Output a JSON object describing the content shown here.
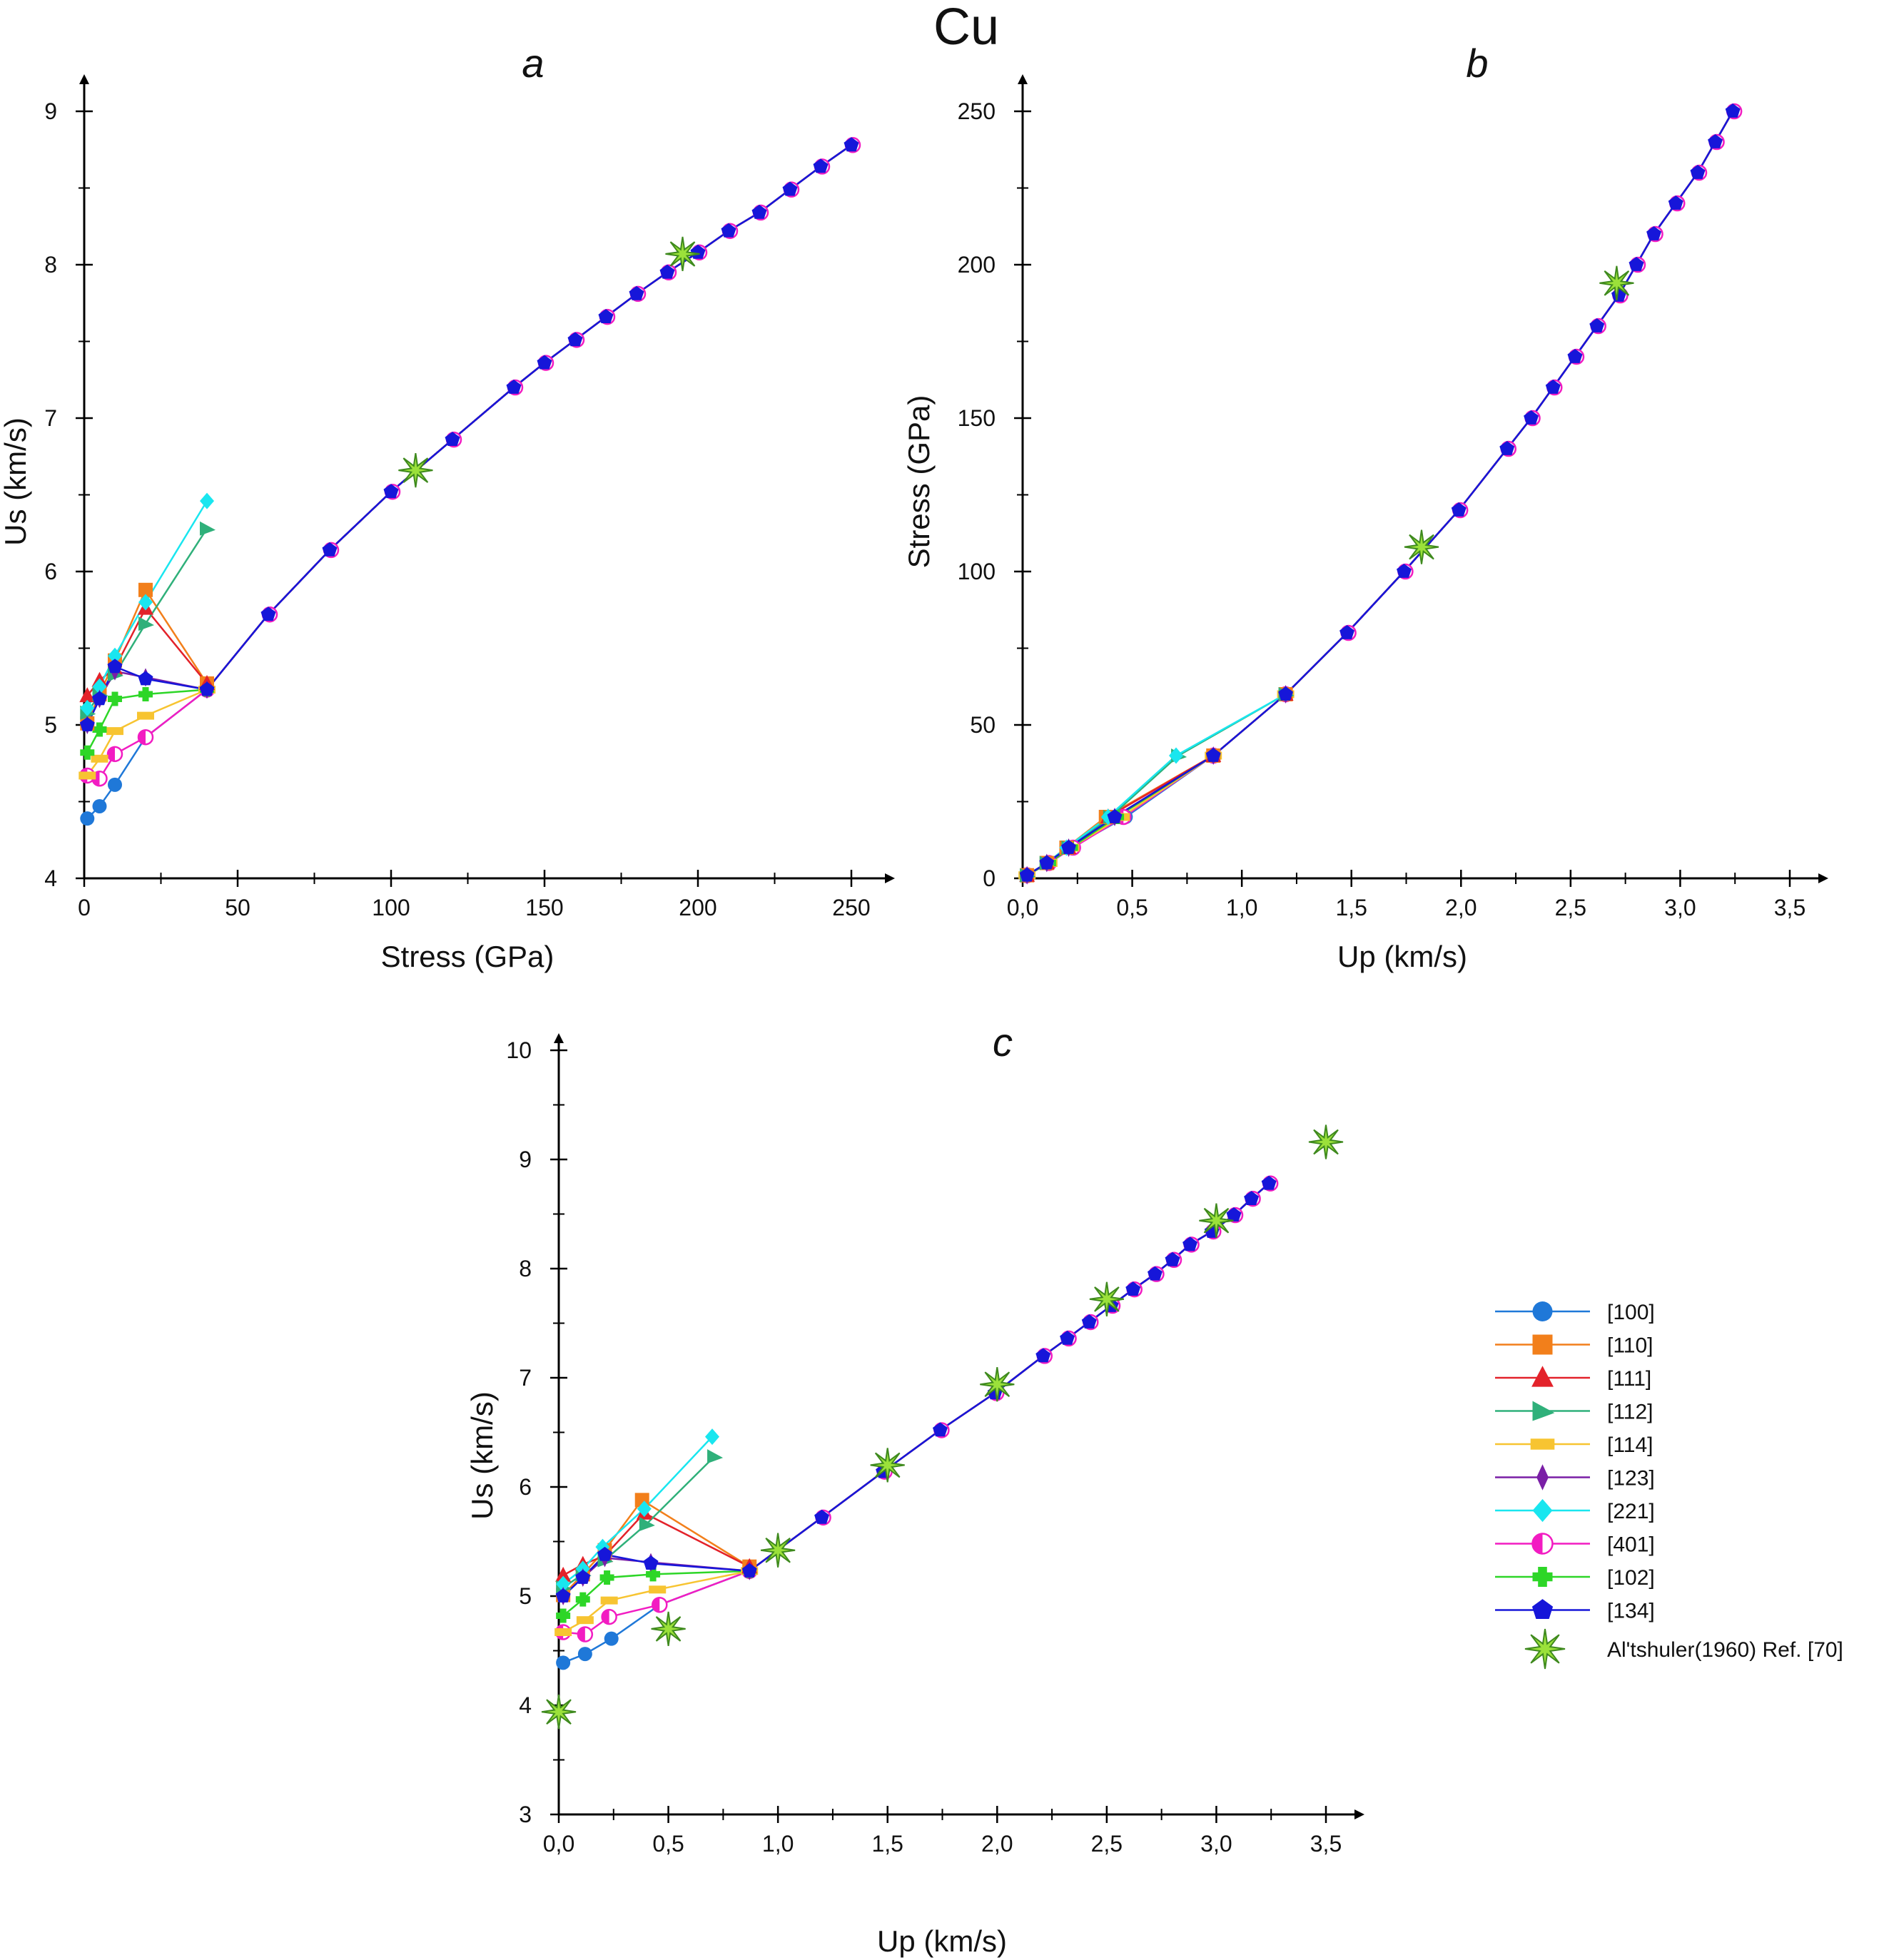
{
  "title": "Cu",
  "colors": {
    "[100]": "#1f78d8",
    "[110]": "#f27f1b",
    "[111]": "#e3222a",
    "[112]": "#2fb07a",
    "[114]": "#f7c431",
    "[123]": "#7a1fa6",
    "[221]": "#19e6ef",
    "[401]": "#f21cc2",
    "[102]": "#2dd627",
    "[134]": "#1616d9",
    "altshuler": "#9be13a",
    "altshuler_edge": "#3f8a1e",
    "axis": "#000000"
  },
  "legend": {
    "items": [
      {
        "label": "[100]",
        "marker": "circle"
      },
      {
        "label": "[110]",
        "marker": "square"
      },
      {
        "label": "[111]",
        "marker": "triangle-up"
      },
      {
        "label": "[112]",
        "marker": "triangle-right"
      },
      {
        "label": "[114]",
        "marker": "bar"
      },
      {
        "label": "[123]",
        "marker": "thin-diamond"
      },
      {
        "label": "[221]",
        "marker": "diamond"
      },
      {
        "label": "[401]",
        "marker": "half-circle"
      },
      {
        "label": "[102]",
        "marker": "plus"
      },
      {
        "label": "[134]",
        "marker": "pentagon"
      }
    ],
    "reference_label": "Al'tshuler(1960) Ref. [70]"
  },
  "chart_data": [
    {
      "id": "a",
      "panel_label": "a",
      "type": "line",
      "xlabel": "Stress (GPa)",
      "ylabel": "Us (km/s)",
      "xlim": [
        0,
        250
      ],
      "ylim": [
        4,
        9
      ],
      "xticks": [
        0,
        50,
        100,
        150,
        200,
        250
      ],
      "yticks": [
        4,
        5,
        6,
        7,
        8,
        9
      ],
      "x_tick_labels": [
        "0",
        "50",
        "100",
        "150",
        "200",
        "250"
      ],
      "y_tick_labels": [
        "4",
        "5",
        "6",
        "7",
        "8",
        "9"
      ],
      "series": [
        {
          "name": "[100]",
          "x": [
            1,
            5,
            10,
            20,
            40
          ],
          "y": [
            4.39,
            4.47,
            4.61,
            4.92,
            5.23
          ]
        },
        {
          "name": "[110]",
          "x": [
            1,
            5,
            10,
            20,
            40
          ],
          "y": [
            5.01,
            5.2,
            5.42,
            5.88,
            5.27
          ]
        },
        {
          "name": "[111]",
          "x": [
            1,
            5,
            10,
            20,
            40
          ],
          "y": [
            5.19,
            5.29,
            5.37,
            5.76,
            5.27
          ]
        },
        {
          "name": "[112]",
          "x": [
            1,
            5,
            10,
            20,
            40
          ],
          "y": [
            5.08,
            5.2,
            5.33,
            5.66,
            6.28
          ]
        },
        {
          "name": "[114]",
          "x": [
            1,
            5,
            10,
            20,
            40
          ],
          "y": [
            4.67,
            4.78,
            4.96,
            5.06,
            5.23
          ]
        },
        {
          "name": "[123]",
          "x": [
            1,
            5,
            10,
            20,
            40
          ],
          "y": [
            5.0,
            5.17,
            5.35,
            5.31,
            5.23
          ]
        },
        {
          "name": "[221]",
          "x": [
            1,
            5,
            10,
            20,
            40
          ],
          "y": [
            5.11,
            5.25,
            5.45,
            5.8,
            6.46
          ]
        },
        {
          "name": "[401]",
          "x": [
            1,
            5,
            10,
            20,
            40
          ],
          "y": [
            4.67,
            4.65,
            4.81,
            4.92,
            5.23
          ]
        },
        {
          "name": "[102]",
          "x": [
            1,
            5,
            10,
            20,
            40
          ],
          "y": [
            4.82,
            4.97,
            5.17,
            5.2,
            5.23
          ]
        },
        {
          "name": "[134]",
          "x": [
            1,
            5,
            10,
            20,
            40
          ],
          "y": [
            5.0,
            5.17,
            5.38,
            5.3,
            5.23
          ]
        }
      ],
      "common_tail": {
        "x": [
          40,
          60,
          80,
          100,
          120,
          140,
          150,
          160,
          170,
          180,
          190,
          200,
          210,
          220,
          230,
          240,
          250
        ],
        "y": [
          5.23,
          5.72,
          6.14,
          6.52,
          6.86,
          7.2,
          7.36,
          7.51,
          7.66,
          7.81,
          7.95,
          8.08,
          8.22,
          8.34,
          8.49,
          8.64,
          8.78
        ]
      },
      "reference": {
        "name": "Al'tshuler(1960) Ref. [70]",
        "x": [
          108,
          195
        ],
        "y": [
          6.66,
          8.07
        ]
      }
    },
    {
      "id": "b",
      "panel_label": "b",
      "type": "line",
      "xlabel": "Up (km/s)",
      "ylabel": "Stress (GPa)",
      "xlim": [
        0,
        3.5
      ],
      "ylim": [
        0,
        250
      ],
      "xticks": [
        0,
        0.5,
        1,
        1.5,
        2,
        2.5,
        3,
        3.5
      ],
      "yticks": [
        0,
        50,
        100,
        150,
        200,
        250
      ],
      "x_tick_labels": [
        "0,0",
        "0,5",
        "1,0",
        "1,5",
        "2,0",
        "2,5",
        "3,0",
        "3,5"
      ],
      "y_tick_labels": [
        "0",
        "50",
        "100",
        "150",
        "200",
        "250"
      ],
      "series": [
        {
          "name": "[100]",
          "x": [
            0.02,
            0.12,
            0.22,
            0.47,
            0.87,
            1.2
          ],
          "y": [
            1,
            5,
            10,
            20,
            40,
            60
          ]
        },
        {
          "name": "[110]",
          "x": [
            0.02,
            0.11,
            0.2,
            0.38,
            0.87,
            1.2
          ],
          "y": [
            1,
            5,
            10,
            20,
            40,
            60
          ]
        },
        {
          "name": "[111]",
          "x": [
            0.02,
            0.11,
            0.21,
            0.39,
            0.87,
            1.2
          ],
          "y": [
            1,
            5,
            10,
            20,
            40,
            60
          ]
        },
        {
          "name": "[112]",
          "x": [
            0.02,
            0.11,
            0.21,
            0.4,
            0.71,
            1.2
          ],
          "y": [
            1,
            5,
            10,
            20,
            40,
            60
          ]
        },
        {
          "name": "[114]",
          "x": [
            0.02,
            0.12,
            0.22,
            0.45,
            0.87,
            1.2
          ],
          "y": [
            1,
            5,
            10,
            20,
            40,
            60
          ]
        },
        {
          "name": "[123]",
          "x": [
            0.02,
            0.11,
            0.21,
            0.42,
            0.87,
            1.2
          ],
          "y": [
            1,
            5,
            10,
            20,
            40,
            60
          ]
        },
        {
          "name": "[221]",
          "x": [
            0.02,
            0.11,
            0.2,
            0.39,
            0.7,
            1.2
          ],
          "y": [
            1,
            5,
            10,
            20,
            40,
            60
          ]
        },
        {
          "name": "[401]",
          "x": [
            0.02,
            0.12,
            0.23,
            0.46,
            0.87,
            1.2
          ],
          "y": [
            1,
            5,
            10,
            20,
            40,
            60
          ]
        },
        {
          "name": "[102]",
          "x": [
            0.02,
            0.12,
            0.22,
            0.43,
            0.87,
            1.2
          ],
          "y": [
            1,
            5,
            10,
            20,
            40,
            60
          ]
        },
        {
          "name": "[134]",
          "x": [
            0.02,
            0.11,
            0.21,
            0.42,
            0.87,
            1.2
          ],
          "y": [
            1,
            5,
            10,
            20,
            40,
            60
          ]
        }
      ],
      "common_tail": {
        "x": [
          1.2,
          1.48,
          1.74,
          1.99,
          2.21,
          2.32,
          2.42,
          2.52,
          2.62,
          2.72,
          2.8,
          2.88,
          2.98,
          3.08,
          3.16,
          3.24
        ],
        "y": [
          60,
          80,
          100,
          120,
          140,
          150,
          160,
          170,
          180,
          190,
          200,
          210,
          220,
          230,
          240,
          250
        ]
      },
      "reference": {
        "name": "Al'tshuler(1960) Ref. [70]",
        "x": [
          1.82,
          2.71
        ],
        "y": [
          108,
          194
        ]
      }
    },
    {
      "id": "c",
      "panel_label": "c",
      "type": "line",
      "xlabel": "Up (km/s)",
      "ylabel": "Us (km/s)",
      "xlim": [
        0,
        3.5
      ],
      "ylim": [
        3,
        10
      ],
      "xticks": [
        0,
        0.5,
        1,
        1.5,
        2,
        2.5,
        3,
        3.5
      ],
      "yticks": [
        3,
        4,
        5,
        6,
        7,
        8,
        9,
        10
      ],
      "x_tick_labels": [
        "0,0",
        "0,5",
        "1,0",
        "1,5",
        "2,0",
        "2,5",
        "3,0",
        "3,5"
      ],
      "y_tick_labels": [
        "3",
        "4",
        "5",
        "6",
        "7",
        "8",
        "9",
        "10"
      ],
      "series": [
        {
          "name": "[100]",
          "x": [
            0.02,
            0.12,
            0.24,
            0.46,
            0.87
          ],
          "y": [
            4.39,
            4.47,
            4.61,
            4.92,
            5.23
          ]
        },
        {
          "name": "[110]",
          "x": [
            0.02,
            0.11,
            0.21,
            0.38,
            0.87
          ],
          "y": [
            5.01,
            5.2,
            5.42,
            5.88,
            5.27
          ]
        },
        {
          "name": "[111]",
          "x": [
            0.02,
            0.11,
            0.21,
            0.39,
            0.87
          ],
          "y": [
            5.19,
            5.29,
            5.37,
            5.76,
            5.27
          ]
        },
        {
          "name": "[112]",
          "x": [
            0.02,
            0.11,
            0.21,
            0.4,
            0.71
          ],
          "y": [
            5.08,
            5.2,
            5.33,
            5.66,
            6.28
          ]
        },
        {
          "name": "[114]",
          "x": [
            0.02,
            0.12,
            0.23,
            0.45,
            0.87
          ],
          "y": [
            4.67,
            4.78,
            4.96,
            5.06,
            5.23
          ]
        },
        {
          "name": "[123]",
          "x": [
            0.02,
            0.11,
            0.21,
            0.42,
            0.87
          ],
          "y": [
            5.0,
            5.17,
            5.35,
            5.31,
            5.23
          ]
        },
        {
          "name": "[221]",
          "x": [
            0.02,
            0.11,
            0.2,
            0.39,
            0.7
          ],
          "y": [
            5.11,
            5.25,
            5.45,
            5.8,
            6.46
          ]
        },
        {
          "name": "[401]",
          "x": [
            0.02,
            0.12,
            0.23,
            0.46,
            0.87
          ],
          "y": [
            4.67,
            4.65,
            4.81,
            4.92,
            5.23
          ]
        },
        {
          "name": "[102]",
          "x": [
            0.02,
            0.11,
            0.22,
            0.43,
            0.87
          ],
          "y": [
            4.82,
            4.97,
            5.17,
            5.2,
            5.23
          ]
        },
        {
          "name": "[134]",
          "x": [
            0.02,
            0.11,
            0.21,
            0.42,
            0.87
          ],
          "y": [
            5.0,
            5.17,
            5.38,
            5.3,
            5.23
          ]
        }
      ],
      "common_tail": {
        "x": [
          0.87,
          1.2,
          1.48,
          1.74,
          1.99,
          2.21,
          2.32,
          2.42,
          2.52,
          2.62,
          2.72,
          2.8,
          2.88,
          2.98,
          3.08,
          3.16,
          3.24
        ],
        "y": [
          5.23,
          5.72,
          6.14,
          6.52,
          6.86,
          7.2,
          7.36,
          7.51,
          7.66,
          7.81,
          7.95,
          8.08,
          8.22,
          8.34,
          8.49,
          8.64,
          8.78
        ]
      },
      "reference": {
        "name": "Al'tshuler(1960) Ref. [70]",
        "x": [
          0.0,
          0.5,
          1.0,
          1.5,
          2.0,
          2.5,
          3.0,
          3.5
        ],
        "y": [
          3.94,
          4.7,
          5.42,
          6.2,
          6.94,
          7.72,
          8.44,
          9.16
        ]
      }
    }
  ]
}
